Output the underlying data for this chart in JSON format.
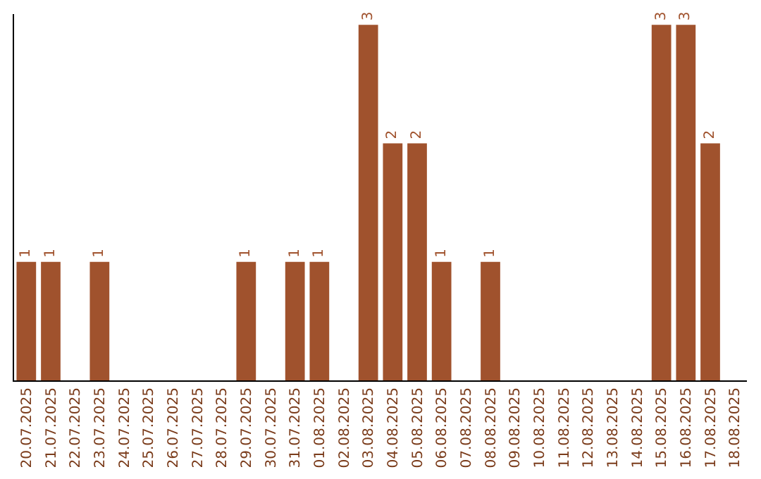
{
  "chart_data": {
    "type": "bar",
    "categories": [
      "20.07.2025",
      "21.07.2025",
      "22.07.2025",
      "23.07.2025",
      "24.07.2025",
      "25.07.2025",
      "26.07.2025",
      "27.07.2025",
      "28.07.2025",
      "29.07.2025",
      "30.07.2025",
      "31.07.2025",
      "01.08.2025",
      "02.08.2025",
      "03.08.2025",
      "04.08.2025",
      "05.08.2025",
      "06.08.2025",
      "07.08.2025",
      "08.08.2025",
      "09.08.2025",
      "10.08.2025",
      "11.08.2025",
      "12.08.2025",
      "13.08.2025",
      "14.08.2025",
      "15.08.2025",
      "16.08.2025",
      "17.08.2025",
      "18.08.2025"
    ],
    "values": [
      1,
      1,
      0,
      1,
      0,
      0,
      0,
      0,
      0,
      1,
      0,
      1,
      1,
      0,
      3,
      2,
      2,
      1,
      0,
      1,
      0,
      0,
      0,
      0,
      0,
      0,
      3,
      3,
      2,
      0
    ],
    "value_labels": [
      "1",
      "1",
      null,
      "1",
      null,
      null,
      null,
      null,
      null,
      "1",
      null,
      "1",
      "1",
      null,
      "3",
      "2",
      "2",
      "1",
      null,
      "1",
      null,
      null,
      null,
      null,
      null,
      null,
      "3",
      "3",
      "2",
      null
    ],
    "color": "#a0522d",
    "grid": false,
    "legend": false
  }
}
